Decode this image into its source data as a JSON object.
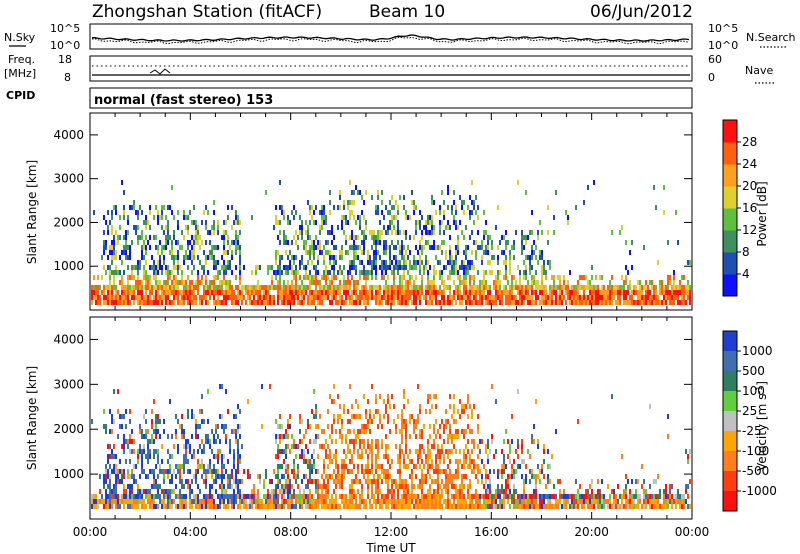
{
  "header": {
    "station": "Zhongshan Station (fitACF)",
    "beam": "Beam 10",
    "date": "06/Jun/2012"
  },
  "param_panels": {
    "nsky_label": "N.Sky",
    "nsky_tick_top": "10^5",
    "nsky_tick_bottom": "10^0",
    "nsearch_label": "N.Search",
    "nsearch_tick_top": "10^5",
    "nsearch_tick_bottom": "10^0",
    "freq_label": "Freq.",
    "freq_unit": "[MHz]",
    "freq_tick_top": "18",
    "freq_tick_bottom": "8",
    "nave_label": "Nave",
    "nave_tick_top": "60",
    "nave_tick_bottom": "0",
    "cpid_label": "CPID",
    "cpid_value": "normal (fast stereo) 153"
  },
  "colors": {
    "power": [
      "#1010ff",
      "#1f4fb0",
      "#3f8f5f",
      "#5fbf3f",
      "#dfcf2f",
      "#ff9f1f",
      "#ff5f0f",
      "#ff1010"
    ],
    "velocity": [
      "#1f3fd0",
      "#3f6fb0",
      "#2f7f5f",
      "#5fcf3f",
      "#c0c0c0",
      "#ffa500",
      "#ff7f1f",
      "#ff3f0f",
      "#ff1010"
    ]
  },
  "chart_data": [
    {
      "type": "heatmap",
      "name": "power",
      "ylabel": "Slant Range [km]",
      "yticks": [
        "1000",
        "2000",
        "3000",
        "4000"
      ],
      "ylim": [
        0,
        4500
      ],
      "xlim": [
        "00:00",
        "24:00"
      ],
      "colorbar_label": "Power [dB]",
      "colorbar_ticks": [
        "4",
        "8",
        "12",
        "16",
        "20",
        "24",
        "28"
      ],
      "colorbar_range": [
        0,
        32
      ]
    },
    {
      "type": "heatmap",
      "name": "velocity",
      "ylabel": "Slant Range [km]",
      "yticks": [
        "1000",
        "2000",
        "3000",
        "4000"
      ],
      "ylim": [
        0,
        4500
      ],
      "xlim": [
        "00:00",
        "24:00"
      ],
      "xticks": [
        "00:00",
        "04:00",
        "08:00",
        "12:00",
        "16:00",
        "20:00",
        "00:00"
      ],
      "xlabel": "Time UT",
      "colorbar_label": "Velocity [m s",
      "colorbar_label_sup": "-1",
      "colorbar_label_end": "]",
      "colorbar_ticks": [
        "1000",
        "500",
        "100",
        "25",
        "-25",
        "-100",
        "-500",
        "-1000"
      ]
    }
  ]
}
